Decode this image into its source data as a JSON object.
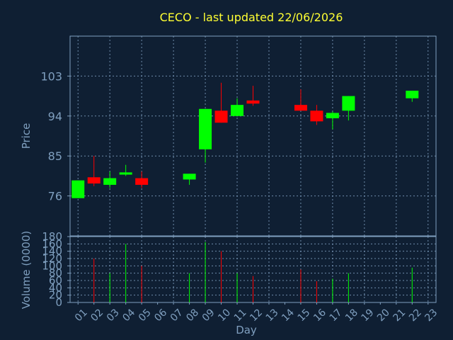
{
  "chart_data": [
    {
      "type": "candlestick",
      "title": "CECO - last updated 22/06/2026",
      "ylabel": "Price",
      "ylim": [
        67,
        112
      ],
      "yticks": [
        76,
        85,
        94,
        103
      ],
      "categories": [
        "01",
        "02",
        "03",
        "04",
        "05",
        "06",
        "07",
        "08",
        "09",
        "10",
        "11",
        "12",
        "13",
        "14",
        "15",
        "16",
        "17",
        "18",
        "19",
        "20",
        "21",
        "22",
        "23"
      ],
      "up_color": "#00ff00",
      "down_color": "#ff0000",
      "grid": true,
      "candles": [
        {
          "day": "01",
          "open": 75.5,
          "close": 79.5,
          "high": 79.5,
          "low": 75.5
        },
        {
          "day": "02",
          "open": 80.2,
          "close": 78.8,
          "high": 85.0,
          "low": 78.2
        },
        {
          "day": "03",
          "open": 78.5,
          "close": 80.0,
          "high": 81.5,
          "low": 77.8
        },
        {
          "day": "04",
          "open": 80.8,
          "close": 81.3,
          "high": 83.0,
          "low": 80.5
        },
        {
          "day": "05",
          "open": 80.0,
          "close": 78.5,
          "high": 81.5,
          "low": 77.8
        },
        {
          "day": "08",
          "open": 79.7,
          "close": 81.0,
          "high": 81.0,
          "low": 78.5
        },
        {
          "day": "09",
          "open": 86.5,
          "close": 95.6,
          "high": 95.6,
          "low": 83.5
        },
        {
          "day": "10",
          "open": 95.2,
          "close": 92.5,
          "high": 101.5,
          "low": 92.5
        },
        {
          "day": "11",
          "open": 94.0,
          "close": 96.5,
          "high": 98.0,
          "low": 94.0
        },
        {
          "day": "12",
          "open": 97.5,
          "close": 96.8,
          "high": 100.8,
          "low": 96.3
        },
        {
          "day": "15",
          "open": 96.5,
          "close": 95.2,
          "high": 100.0,
          "low": 95.2
        },
        {
          "day": "16",
          "open": 95.2,
          "close": 92.8,
          "high": 96.5,
          "low": 92.0
        },
        {
          "day": "17",
          "open": 93.5,
          "close": 94.7,
          "high": 95.0,
          "low": 91.0
        },
        {
          "day": "18",
          "open": 95.2,
          "close": 98.5,
          "high": 98.5,
          "low": 93.0
        },
        {
          "day": "22",
          "open": 98.0,
          "close": 99.7,
          "high": 99.7,
          "low": 97.2
        }
      ]
    },
    {
      "type": "bar",
      "ylabel": "Volume (0000)",
      "xlabel": "Day",
      "ylim": [
        0,
        180
      ],
      "yticks": [
        0,
        20,
        40,
        60,
        80,
        100,
        120,
        140,
        160,
        180
      ],
      "categories": [
        "01",
        "02",
        "03",
        "04",
        "05",
        "06",
        "07",
        "08",
        "09",
        "10",
        "11",
        "12",
        "13",
        "14",
        "15",
        "16",
        "17",
        "18",
        "19",
        "20",
        "21",
        "22",
        "23"
      ],
      "bars": [
        {
          "day": "02",
          "value": 120,
          "color": "#ff0000"
        },
        {
          "day": "03",
          "value": 80,
          "color": "#00ff00"
        },
        {
          "day": "04",
          "value": 160,
          "color": "#00ff00"
        },
        {
          "day": "05",
          "value": 100,
          "color": "#ff0000"
        },
        {
          "day": "08",
          "value": 80,
          "color": "#00ff00"
        },
        {
          "day": "09",
          "value": 165,
          "color": "#00ff00"
        },
        {
          "day": "10",
          "value": 140,
          "color": "#ff0000"
        },
        {
          "day": "11",
          "value": 80,
          "color": "#00ff00"
        },
        {
          "day": "12",
          "value": 72,
          "color": "#ff0000"
        },
        {
          "day": "15",
          "value": 90,
          "color": "#ff0000"
        },
        {
          "day": "16",
          "value": 58,
          "color": "#ff0000"
        },
        {
          "day": "17",
          "value": 65,
          "color": "#00ff00"
        },
        {
          "day": "18",
          "value": 80,
          "color": "#00ff00"
        },
        {
          "day": "22",
          "value": 95,
          "color": "#00ff00"
        }
      ]
    }
  ]
}
